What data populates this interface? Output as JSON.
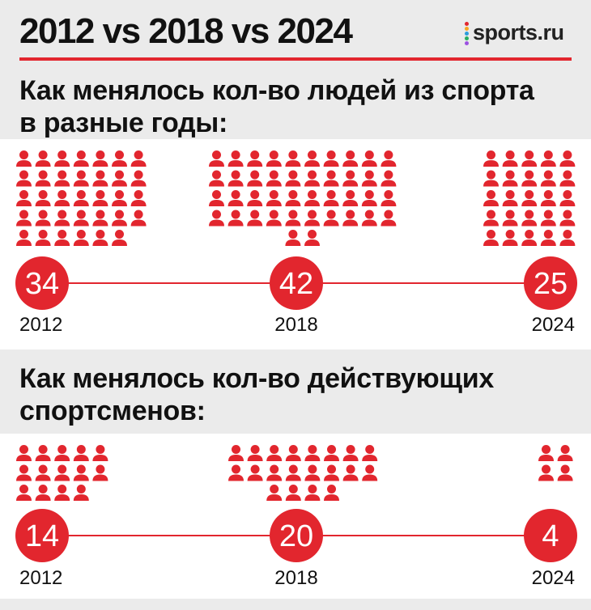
{
  "header": {
    "title": "2012 vs 2018 vs 2024",
    "logo_text": "sports.ru",
    "logo_dot_colors": [
      "#e2262e",
      "#f6a623",
      "#2d9cdb",
      "#27ae60",
      "#9b51e0"
    ]
  },
  "colors": {
    "accent": "#e2262e",
    "band": "#ebebeb"
  },
  "sections": [
    {
      "title_line1": "Как менялось кол-во людей из спорта",
      "title_line2": "в разные годы:"
    },
    {
      "title_line1": "Как менялось кол-во действующих",
      "title_line2": "спортсменов:"
    }
  ],
  "chart_data": [
    {
      "type": "pictogram",
      "title": "Как менялось кол-во людей из спорта в разные годы:",
      "categories": [
        "2012",
        "2018",
        "2024"
      ],
      "values": [
        34,
        42,
        25
      ],
      "value_labels": [
        "34",
        "42",
        "25"
      ]
    },
    {
      "type": "pictogram",
      "title": "Как менялось кол-во действующих спортсменов:",
      "categories": [
        "2012",
        "2018",
        "2024"
      ],
      "values": [
        14,
        20,
        4
      ],
      "value_labels": [
        "14",
        "20",
        "4"
      ]
    }
  ]
}
